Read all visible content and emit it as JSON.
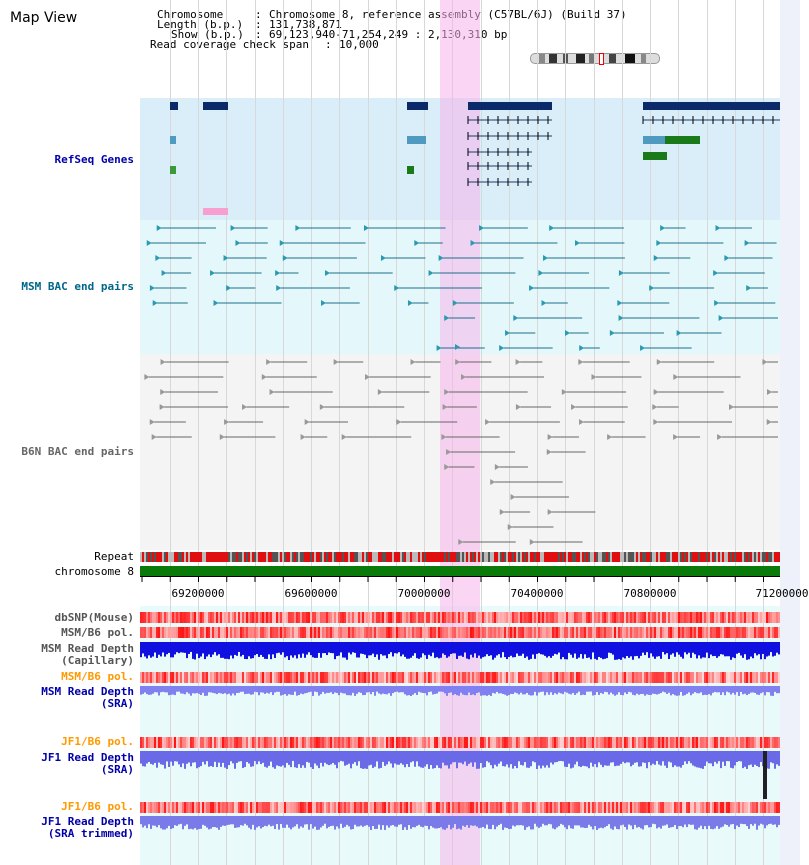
{
  "title": "Map View",
  "info": {
    "chromosome_label": "Chromosome",
    "chromosome_value": "Chromosome 8, reference assembly (C57BL/6J) (Build 37)",
    "length_label": "Length (b.p.)",
    "length_value": "131,738,871",
    "show_label": "Show (b.p.)",
    "show_value": "69,123,940-71,254,249 : 2,130,310 bp",
    "coverage_label": "Read coverage check span",
    "coverage_value": "10,000"
  },
  "tracks": {
    "refseq": "RefSeq Genes",
    "msm_bac": "MSM BAC end pairs",
    "b6n_bac": "B6N BAC end pairs",
    "repeat": "Repeat",
    "chromosome": "chromosome 8",
    "dbsnp": "dbSNP(Mouse)",
    "msm_b6_pol": "MSM/B6 pol.",
    "msm_read_depth_cap": "MSM Read Depth",
    "msm_read_depth_cap_sub": "(Capillary)",
    "msm_b6_pol2": "MSM/B6 pol.",
    "msm_read_depth_sra": "MSM Read Depth",
    "msm_read_depth_sra_sub": "(SRA)",
    "jf1_b6_pol": "JF1/B6 pol.",
    "jf1_read_depth_sra": "JF1 Read Depth",
    "jf1_read_depth_sra_sub": "(SRA)",
    "jf1_b6_pol2": "JF1/B6 pol.",
    "jf1_read_depth_trim": "JF1 Read Depth",
    "jf1_read_depth_trim_sub": "(SRA trimmed)"
  },
  "axis_ticks": [
    "69200000",
    "69600000",
    "70000000",
    "70400000",
    "70800000",
    "71200000"
  ],
  "colors": {
    "refseq_bg": "#d9eef8",
    "msm_bac_bg": "#e4f8fb",
    "highlight": "#f6cdee",
    "refseq_label": "#0000aa",
    "msm_label": "#006688",
    "b6n_label": "#666666",
    "pol_orange": "#ff9900"
  }
}
